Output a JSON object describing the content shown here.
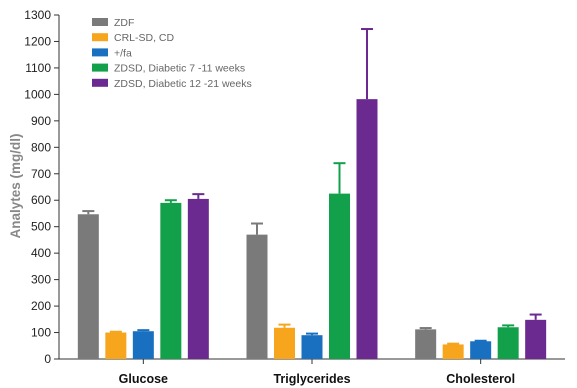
{
  "chart_data": {
    "type": "bar",
    "title": "",
    "xlabel": "",
    "ylabel": "Analytes (mg/dl)",
    "ylim": [
      0,
      1300
    ],
    "yticks": [
      0,
      100,
      200,
      300,
      400,
      500,
      600,
      700,
      800,
      900,
      1000,
      1100,
      1200,
      1300
    ],
    "grid": false,
    "legend_position": "top-left",
    "categories": [
      "Glucose",
      "Triglycerides",
      "Cholesterol"
    ],
    "series": [
      {
        "name": "ZDF",
        "color": "#7a7a7a",
        "values": [
          547,
          470,
          112
        ],
        "errors": [
          12,
          42,
          5
        ]
      },
      {
        "name": "CRL-SD, CD",
        "color": "#f7a51c",
        "values": [
          100,
          118,
          55
        ],
        "errors": [
          3,
          12,
          3
        ]
      },
      {
        "name": "+/fa",
        "color": "#1a70c0",
        "values": [
          105,
          90,
          67
        ],
        "errors": [
          4,
          6,
          2
        ]
      },
      {
        "name": "ZDSD, Diabetic 7 -11 weeks",
        "color": "#13a04b",
        "values": [
          590,
          625,
          120
        ],
        "errors": [
          10,
          115,
          7
        ]
      },
      {
        "name": "ZDSD, Diabetic 12 -21 weeks",
        "color": "#6b2a8f",
        "values": [
          605,
          982,
          148
        ],
        "errors": [
          18,
          265,
          20
        ]
      }
    ]
  }
}
